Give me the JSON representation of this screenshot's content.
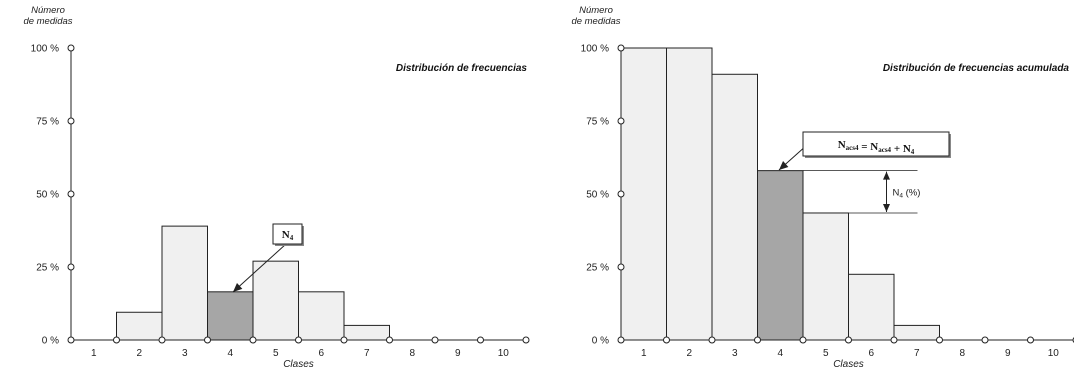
{
  "chart_data": [
    {
      "type": "bar",
      "title": "Distribución de frecuencias",
      "ylabel": [
        "Número",
        "de medidas"
      ],
      "xlabel": "Clases",
      "categories": [
        "1",
        "2",
        "3",
        "4",
        "5",
        "6",
        "7",
        "8",
        "9",
        "10"
      ],
      "values": [
        0,
        9.5,
        39,
        16.5,
        27,
        16.5,
        5,
        0,
        0,
        0
      ],
      "unit": "%",
      "highlight_index": 3,
      "yticks": [
        "0 %",
        "25 %",
        "50 %",
        "75 %",
        "100 %"
      ],
      "ylim": [
        0,
        100
      ],
      "legend": "none",
      "grid": false,
      "annotation": {
        "main": "N",
        "sub": "4"
      }
    },
    {
      "type": "bar",
      "title": "Distribución de frecuencias acumulada",
      "ylabel": [
        "Número",
        "de medidas"
      ],
      "xlabel": "Clases",
      "categories": [
        "1",
        "2",
        "3",
        "4",
        "5",
        "6",
        "7",
        "8",
        "9",
        "10"
      ],
      "values": [
        100,
        100,
        91,
        58,
        43.5,
        22.5,
        5,
        0,
        0,
        0
      ],
      "unit": "%",
      "highlight_index": 3,
      "yticks": [
        "0 %",
        "25 %",
        "50 %",
        "75 %",
        "100 %"
      ],
      "ylim": [
        0,
        100
      ],
      "legend": "none",
      "grid": false,
      "annotation": {
        "parts": [
          {
            "t": "N"
          },
          {
            "t": "acs4",
            "sub": true
          },
          {
            "t": " = N"
          },
          {
            "t": "acs4",
            "sub": true
          },
          {
            "t": " + N"
          },
          {
            "t": "4",
            "sub": true
          }
        ]
      },
      "measure": {
        "main": "N",
        "sub": "4",
        "suffix": " (%)"
      }
    }
  ],
  "colors": {
    "bar_fill": "#f0f0f0",
    "bar_highlight": "#a6a6a6",
    "line": "#222222",
    "background": "#ffffff"
  }
}
